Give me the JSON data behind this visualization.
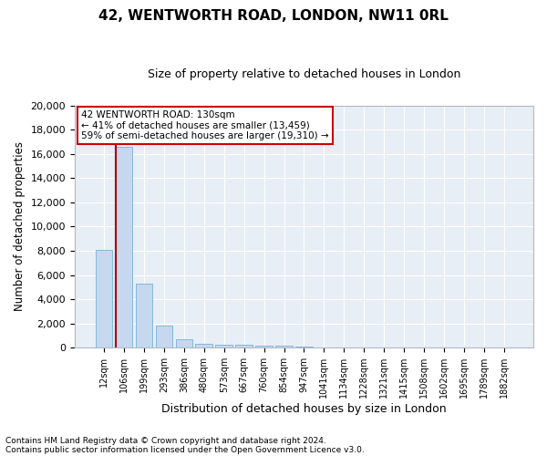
{
  "title": "42, WENTWORTH ROAD, LONDON, NW11 0RL",
  "subtitle": "Size of property relative to detached houses in London",
  "xlabel": "Distribution of detached houses by size in London",
  "ylabel": "Number of detached properties",
  "categories": [
    "12sqm",
    "106sqm",
    "199sqm",
    "293sqm",
    "386sqm",
    "480sqm",
    "573sqm",
    "667sqm",
    "760sqm",
    "854sqm",
    "947sqm",
    "1041sqm",
    "1134sqm",
    "1228sqm",
    "1321sqm",
    "1415sqm",
    "1508sqm",
    "1602sqm",
    "1695sqm",
    "1789sqm",
    "1882sqm"
  ],
  "values": [
    8100,
    16600,
    5300,
    1850,
    700,
    350,
    270,
    215,
    175,
    130,
    60,
    0,
    0,
    0,
    0,
    0,
    0,
    0,
    0,
    0,
    0
  ],
  "bar_color": "#c5d8ef",
  "bar_edge_color": "#7aafd4",
  "background_color": "#e8eef6",
  "grid_color": "#d0d8e8",
  "vline_x": 0.58,
  "vline_color": "#aa0000",
  "annotation_text_line1": "42 WENTWORTH ROAD: 130sqm",
  "annotation_text_line2": "← 41% of detached houses are smaller (13,459)",
  "annotation_text_line3": "59% of semi-detached houses are larger (19,310) →",
  "annotation_box_color": "#cc0000",
  "ylim": [
    0,
    20000
  ],
  "yticks": [
    0,
    2000,
    4000,
    6000,
    8000,
    10000,
    12000,
    14000,
    16000,
    18000,
    20000
  ],
  "footnote1": "Contains HM Land Registry data © Crown copyright and database right 2024.",
  "footnote2": "Contains public sector information licensed under the Open Government Licence v3.0."
}
